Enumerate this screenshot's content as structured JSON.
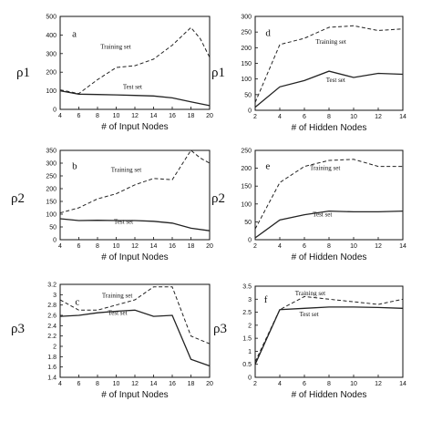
{
  "chart_data": [
    {
      "type": "line",
      "panel": "a",
      "ylabel": "ρ1",
      "xlabel": "# of Input Nodes",
      "xlim": [
        4,
        20
      ],
      "ylim": [
        0,
        500
      ],
      "xticks": [
        4,
        6,
        8,
        10,
        12,
        14,
        16,
        18,
        20
      ],
      "yticks": [
        0,
        100,
        200,
        300,
        400,
        500
      ],
      "series": [
        {
          "name": "Training set",
          "style": "dashed",
          "x": [
            4,
            6,
            8,
            10,
            12,
            14,
            16,
            18,
            19,
            20
          ],
          "y": [
            105,
            85,
            160,
            225,
            235,
            270,
            345,
            440,
            380,
            280
          ]
        },
        {
          "name": "Test set",
          "style": "solid",
          "x": [
            4,
            6,
            8,
            10,
            12,
            14,
            16,
            18,
            20
          ],
          "y": [
            100,
            82,
            80,
            78,
            75,
            72,
            62,
            40,
            20
          ]
        }
      ]
    },
    {
      "type": "line",
      "panel": "d",
      "ylabel": "ρ1",
      "xlabel": "# of Hidden Nodes",
      "xlim": [
        2,
        14
      ],
      "ylim": [
        0,
        300
      ],
      "xticks": [
        2,
        4,
        6,
        8,
        10,
        12,
        14
      ],
      "yticks": [
        0,
        50,
        100,
        150,
        200,
        250,
        300
      ],
      "series": [
        {
          "name": "Training set",
          "style": "dashed",
          "x": [
            2,
            4,
            6,
            8,
            10,
            12,
            14
          ],
          "y": [
            25,
            210,
            230,
            265,
            270,
            255,
            260
          ]
        },
        {
          "name": "Test set",
          "style": "solid",
          "x": [
            2,
            4,
            6,
            8,
            10,
            12,
            14
          ],
          "y": [
            10,
            75,
            95,
            125,
            105,
            118,
            115
          ]
        }
      ]
    },
    {
      "type": "line",
      "panel": "b",
      "ylabel": "ρ2",
      "xlabel": "# of Input Nodes",
      "xlim": [
        4,
        20
      ],
      "ylim": [
        0,
        350
      ],
      "xticks": [
        4,
        6,
        8,
        10,
        12,
        14,
        16,
        18,
        20
      ],
      "yticks": [
        0,
        50,
        100,
        150,
        200,
        250,
        300,
        350
      ],
      "series": [
        {
          "name": "Training set",
          "style": "dashed",
          "x": [
            4,
            6,
            8,
            10,
            12,
            14,
            16,
            18,
            19,
            20
          ],
          "y": [
            105,
            125,
            160,
            180,
            215,
            240,
            235,
            350,
            320,
            300
          ]
        },
        {
          "name": "Test set",
          "style": "solid",
          "x": [
            4,
            6,
            8,
            10,
            12,
            14,
            16,
            18,
            20
          ],
          "y": [
            82,
            75,
            76,
            75,
            75,
            72,
            65,
            45,
            35
          ]
        }
      ]
    },
    {
      "type": "line",
      "panel": "e",
      "ylabel": "ρ2",
      "xlabel": "# of Hidden Nodes",
      "xlim": [
        2,
        14
      ],
      "ylim": [
        0,
        250
      ],
      "xticks": [
        2,
        4,
        6,
        8,
        10,
        12,
        14
      ],
      "yticks": [
        0,
        50,
        100,
        150,
        200,
        250
      ],
      "series": [
        {
          "name": "Training set",
          "style": "dashed",
          "x": [
            2,
            4,
            6,
            8,
            10,
            12,
            14
          ],
          "y": [
            30,
            160,
            205,
            222,
            225,
            205,
            205
          ]
        },
        {
          "name": "Test set",
          "style": "solid",
          "x": [
            2,
            4,
            6,
            8,
            10,
            12,
            14
          ],
          "y": [
            5,
            55,
            70,
            80,
            78,
            78,
            80
          ]
        }
      ]
    },
    {
      "type": "line",
      "panel": "c",
      "ylabel": "ρ3",
      "xlabel": "# of Input Nodes",
      "xlim": [
        4,
        20
      ],
      "ylim": [
        1.4,
        3.2
      ],
      "xticks": [
        4,
        6,
        8,
        10,
        12,
        14,
        16,
        18,
        20
      ],
      "yticks": [
        1.4,
        1.6,
        1.8,
        2,
        2.2,
        2.4,
        2.6,
        2.8,
        3,
        3.2
      ],
      "series": [
        {
          "name": "Training set",
          "style": "dashed",
          "x": [
            4,
            6,
            8,
            10,
            12,
            14,
            16,
            18,
            20
          ],
          "y": [
            2.9,
            2.7,
            2.7,
            2.8,
            2.9,
            3.15,
            3.15,
            2.2,
            2.05
          ]
        },
        {
          "name": "Test set",
          "style": "solid",
          "x": [
            4,
            6,
            8,
            10,
            12,
            14,
            16,
            18,
            20
          ],
          "y": [
            2.58,
            2.6,
            2.65,
            2.68,
            2.7,
            2.58,
            2.6,
            1.75,
            1.62
          ]
        }
      ]
    },
    {
      "type": "line",
      "panel": "f",
      "ylabel": "ρ3",
      "xlabel": "# of Hidden Nodes",
      "xlim": [
        2,
        14
      ],
      "ylim": [
        0,
        3.5
      ],
      "xticks": [
        2,
        4,
        6,
        8,
        10,
        12,
        14
      ],
      "yticks": [
        0,
        0.5,
        1,
        1.5,
        2,
        2.5,
        3,
        3.5
      ],
      "series": [
        {
          "name": "Training set",
          "style": "dashed",
          "x": [
            2,
            4,
            6,
            8,
            10,
            12,
            14
          ],
          "y": [
            0.6,
            2.6,
            3.1,
            3.0,
            2.9,
            2.8,
            3.0
          ]
        },
        {
          "name": "Test set",
          "style": "solid",
          "x": [
            2,
            4,
            6,
            8,
            10,
            12,
            14
          ],
          "y": [
            0.5,
            2.6,
            2.65,
            2.7,
            2.7,
            2.68,
            2.65
          ]
        }
      ]
    }
  ]
}
